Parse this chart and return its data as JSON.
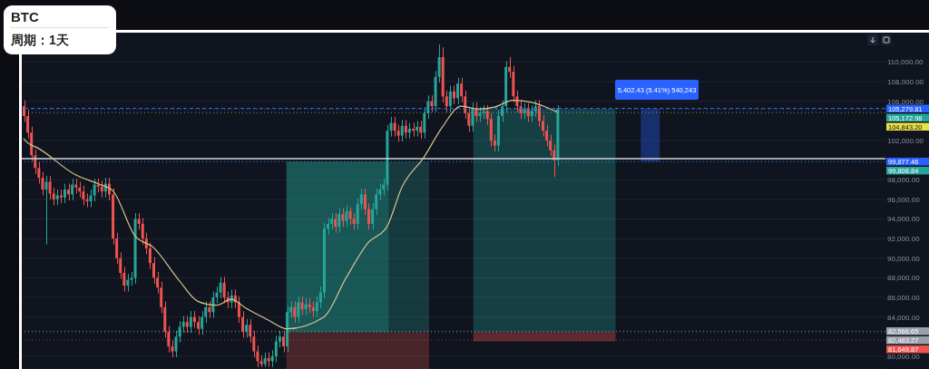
{
  "chart_data": {
    "type": "candlestick",
    "title": "BTC",
    "subtitle": "周期：1天",
    "categories": [
      null,
      null,
      null,
      null,
      null,
      null,
      null,
      null,
      null,
      null,
      null,
      null,
      null,
      null,
      null,
      null,
      null,
      null,
      null,
      null,
      null,
      null,
      null,
      null,
      null,
      null,
      null,
      null,
      null,
      null,
      null,
      null,
      null,
      null,
      null,
      null,
      null,
      null,
      null,
      null,
      null,
      null,
      null,
      null,
      null,
      null,
      null,
      null,
      null,
      null,
      null,
      null,
      null,
      null,
      null,
      null,
      null,
      null,
      null,
      null,
      null,
      null,
      null,
      null,
      null,
      null,
      null,
      null,
      null,
      null,
      null,
      null,
      null,
      null,
      null,
      null,
      null,
      null,
      null,
      null,
      null,
      null,
      null,
      null,
      null,
      null,
      null,
      null,
      null,
      null,
      null,
      null,
      null,
      null,
      null,
      null,
      null,
      null,
      null,
      null,
      null,
      null,
      null,
      null,
      null,
      null,
      null,
      null,
      null,
      null,
      null,
      null,
      null,
      null,
      null,
      null,
      null,
      null,
      null,
      null,
      null,
      null,
      null,
      null,
      null,
      null,
      null,
      null,
      null,
      null,
      null,
      null,
      null,
      null,
      null,
      null,
      null,
      null,
      null,
      null,
      null,
      null,
      null,
      null,
      null,
      null,
      null,
      null,
      null,
      null,
      null,
      null,
      null,
      null,
      null,
      null,
      null,
      null,
      null,
      null,
      null,
      null,
      null,
      null,
      null,
      null,
      null,
      null,
      null,
      null,
      null,
      null,
      null,
      null,
      null,
      null,
      null,
      null,
      null,
      null,
      null,
      null,
      null,
      null,
      null,
      null,
      null,
      null,
      null,
      null,
      null,
      null,
      null,
      null,
      null,
      null,
      null,
      null,
      null,
      null,
      null,
      null,
      null,
      null,
      null,
      null,
      null,
      null,
      null,
      null,
      null,
      null,
      null,
      null,
      null,
      null,
      null,
      null,
      null,
      null,
      null,
      null,
      null,
      null,
      null,
      null,
      null,
      null,
      null,
      null,
      null,
      null,
      null
    ],
    "ohlc": [
      [
        105500,
        106100,
        103900,
        104500
      ],
      [
        104500,
        105100,
        102200,
        102800
      ],
      [
        102800,
        103400,
        99900,
        100500
      ],
      [
        100500,
        101100,
        98600,
        99200
      ],
      [
        99200,
        99800,
        97600,
        98200
      ],
      [
        98200,
        98800,
        96400,
        97000
      ],
      [
        97000,
        98400,
        91400,
        97800
      ],
      [
        97800,
        98400,
        96000,
        96600
      ],
      [
        96600,
        97200,
        95400,
        96000
      ],
      [
        96000,
        97000,
        95400,
        96400
      ],
      [
        96400,
        97000,
        95600,
        96200
      ],
      [
        96200,
        97600,
        95600,
        97000
      ],
      [
        97000,
        97600,
        95900,
        96500
      ],
      [
        96500,
        98100,
        95900,
        97500
      ],
      [
        97500,
        98100,
        96600,
        97200
      ],
      [
        97200,
        97800,
        96200,
        96800
      ],
      [
        96800,
        97400,
        95400,
        96000
      ],
      [
        96000,
        96600,
        95200,
        95800
      ],
      [
        95800,
        97000,
        95200,
        96400
      ],
      [
        96400,
        98100,
        95800,
        97500
      ],
      [
        97500,
        98100,
        96700,
        97300
      ],
      [
        97300,
        97900,
        96200,
        96800
      ],
      [
        96800,
        98200,
        96200,
        97600
      ],
      [
        97600,
        98200,
        95900,
        96500
      ],
      [
        96500,
        97100,
        91400,
        92000
      ],
      [
        92000,
        92600,
        89400,
        90000
      ],
      [
        90000,
        90600,
        87900,
        88500
      ],
      [
        88500,
        89100,
        86600,
        87200
      ],
      [
        87200,
        88400,
        86600,
        87800
      ],
      [
        87800,
        88600,
        87200,
        88000
      ],
      [
        88000,
        94600,
        87400,
        94000
      ],
      [
        94000,
        94600,
        92900,
        93500
      ],
      [
        93500,
        94100,
        91400,
        92000
      ],
      [
        92000,
        92600,
        90400,
        91000
      ],
      [
        91000,
        91600,
        88900,
        89500
      ],
      [
        89500,
        90100,
        87400,
        88000
      ],
      [
        88000,
        88600,
        86400,
        87000
      ],
      [
        87000,
        87600,
        84400,
        85000
      ],
      [
        85000,
        85600,
        81900,
        82500
      ],
      [
        82500,
        83100,
        80400,
        81000
      ],
      [
        81000,
        81600,
        79900,
        80500
      ],
      [
        80500,
        82600,
        79900,
        82000
      ],
      [
        82000,
        83600,
        81400,
        83000
      ],
      [
        83000,
        84100,
        82400,
        83500
      ],
      [
        83500,
        84100,
        82400,
        83000
      ],
      [
        83000,
        84600,
        82400,
        84000
      ],
      [
        84000,
        84600,
        82900,
        83500
      ],
      [
        83500,
        84100,
        82200,
        82800
      ],
      [
        82800,
        84600,
        82200,
        84000
      ],
      [
        84000,
        85600,
        83400,
        85000
      ],
      [
        85000,
        85600,
        83900,
        84500
      ],
      [
        84500,
        86600,
        83900,
        86000
      ],
      [
        86000,
        87100,
        85400,
        86500
      ],
      [
        86500,
        88100,
        85900,
        87500
      ],
      [
        87500,
        88100,
        85400,
        86000
      ],
      [
        86000,
        86600,
        84900,
        85500
      ],
      [
        85500,
        86800,
        84900,
        86200
      ],
      [
        86200,
        86800,
        84900,
        85500
      ],
      [
        85500,
        86100,
        83400,
        84000
      ],
      [
        84000,
        84600,
        81900,
        82500
      ],
      [
        82500,
        83800,
        81900,
        83200
      ],
      [
        83200,
        83800,
        81400,
        82000
      ],
      [
        82000,
        82600,
        79900,
        80500
      ],
      [
        80500,
        81100,
        78900,
        79500
      ],
      [
        79500,
        80100,
        78900,
        79200
      ],
      [
        79200,
        80400,
        78900,
        79800
      ],
      [
        79800,
        80400,
        78900,
        79500
      ],
      [
        79500,
        80600,
        78900,
        80000
      ],
      [
        80000,
        82100,
        79400,
        81500
      ],
      [
        81500,
        82600,
        80900,
        82000
      ],
      [
        82000,
        82600,
        80400,
        81000
      ],
      [
        81000,
        85100,
        80400,
        84500
      ],
      [
        84500,
        85600,
        83900,
        85000
      ],
      [
        85000,
        85600,
        83400,
        84000
      ],
      [
        84000,
        86100,
        83400,
        85500
      ],
      [
        85500,
        86100,
        84200,
        84800
      ],
      [
        84800,
        85900,
        84200,
        85300
      ],
      [
        85300,
        85900,
        84400,
        85000
      ],
      [
        85000,
        85600,
        84000,
        84600
      ],
      [
        84600,
        86100,
        84000,
        85500
      ],
      [
        85500,
        87100,
        84900,
        86500
      ],
      [
        86500,
        93600,
        85900,
        93000
      ],
      [
        93000,
        94100,
        92400,
        93500
      ],
      [
        93500,
        94600,
        92900,
        94000
      ],
      [
        94000,
        94600,
        92600,
        93200
      ],
      [
        93200,
        95100,
        92600,
        94500
      ],
      [
        94500,
        95100,
        93200,
        93800
      ],
      [
        93800,
        95400,
        93200,
        94800
      ],
      [
        94800,
        95200,
        93400,
        94000
      ],
      [
        94000,
        94600,
        92900,
        93500
      ],
      [
        93500,
        96100,
        92900,
        95500
      ],
      [
        95500,
        97100,
        94900,
        96500
      ],
      [
        96500,
        97100,
        94400,
        95000
      ],
      [
        95000,
        95600,
        92900,
        93500
      ],
      [
        93500,
        95600,
        92900,
        95000
      ],
      [
        95000,
        97100,
        94400,
        96500
      ],
      [
        96500,
        97600,
        95900,
        97000
      ],
      [
        97000,
        98100,
        96400,
        97500
      ],
      [
        97500,
        103600,
        96900,
        103000
      ],
      [
        103000,
        104400,
        102400,
        103800
      ],
      [
        103800,
        104400,
        102400,
        103000
      ],
      [
        103000,
        103600,
        101900,
        102500
      ],
      [
        102500,
        104100,
        101900,
        103500
      ],
      [
        103500,
        104100,
        102200,
        102800
      ],
      [
        102800,
        103800,
        102200,
        103200
      ],
      [
        103200,
        103800,
        102400,
        103000
      ],
      [
        103000,
        104000,
        102400,
        103400
      ],
      [
        103400,
        104000,
        102200,
        102800
      ],
      [
        102800,
        105400,
        102200,
        104800
      ],
      [
        104800,
        106600,
        104200,
        106000
      ],
      [
        106000,
        106600,
        104900,
        105500
      ],
      [
        105500,
        109100,
        104900,
        108500
      ],
      [
        108500,
        111800,
        107900,
        110500
      ],
      [
        110500,
        111500,
        105900,
        106500
      ],
      [
        106500,
        107100,
        104900,
        105500
      ],
      [
        105500,
        107600,
        104900,
        107000
      ],
      [
        107000,
        107600,
        105700,
        106300
      ],
      [
        106300,
        108400,
        105700,
        107800
      ],
      [
        107800,
        108400,
        105900,
        106500
      ],
      [
        106500,
        107100,
        104200,
        104800
      ],
      [
        104800,
        105400,
        102900,
        103500
      ],
      [
        103500,
        105900,
        102900,
        105300
      ],
      [
        105300,
        105900,
        103900,
        104500
      ],
      [
        104500,
        105400,
        103900,
        104800
      ],
      [
        104800,
        105600,
        104200,
        105000
      ],
      [
        105000,
        105600,
        103600,
        104200
      ],
      [
        104200,
        104800,
        101400,
        102000
      ],
      [
        102000,
        102600,
        100900,
        101500
      ],
      [
        101500,
        105100,
        100900,
        104500
      ],
      [
        104500,
        106100,
        103900,
        105500
      ],
      [
        105500,
        110100,
        104900,
        109500
      ],
      [
        109500,
        110500,
        108400,
        109000
      ],
      [
        109000,
        109600,
        105900,
        106500
      ],
      [
        106500,
        107100,
        104900,
        105500
      ],
      [
        105500,
        106100,
        104200,
        104800
      ],
      [
        104800,
        105800,
        104200,
        105200
      ],
      [
        105200,
        105800,
        103900,
        104500
      ],
      [
        104500,
        105600,
        103900,
        105000
      ],
      [
        105000,
        106100,
        104400,
        105500
      ],
      [
        105500,
        106100,
        103400,
        104000
      ],
      [
        104000,
        104600,
        102400,
        103000
      ],
      [
        103000,
        103600,
        101400,
        102000
      ],
      [
        102000,
        102600,
        100400,
        101000
      ],
      [
        101000,
        101600,
        98300,
        100000
      ],
      [
        100000,
        105600,
        99400,
        105280
      ],
      null,
      null,
      null,
      null,
      null,
      null,
      null,
      null,
      null,
      null,
      null,
      null,
      null,
      null,
      null,
      null,
      null,
      null,
      null,
      null,
      null,
      null,
      null,
      null,
      null,
      null,
      null,
      null,
      null,
      null,
      null,
      null,
      null,
      null,
      null,
      null,
      null,
      null,
      null,
      null,
      null,
      null,
      null,
      null,
      null,
      null,
      null,
      null,
      null,
      null,
      null,
      null,
      null,
      null,
      null,
      null,
      null,
      null,
      null,
      null,
      null,
      null,
      null,
      null,
      null,
      null,
      null,
      null,
      null,
      null,
      null,
      null,
      null,
      null,
      null,
      null,
      null,
      null,
      null,
      null,
      null,
      null,
      null,
      null,
      null,
      null,
      null,
      null
    ],
    "series": [
      {
        "type": "line",
        "color": "#d6c48c",
        "values": [
          102200,
          101800,
          null,
          null,
          101200,
          null,
          null,
          null,
          null,
          null,
          null,
          null,
          null,
          null,
          98500,
          null,
          null,
          null,
          null,
          null,
          97600,
          null,
          null,
          null,
          96900,
          null,
          null,
          null,
          null,
          null,
          92300,
          null,
          null,
          null,
          null,
          91100,
          null,
          null,
          null,
          null,
          null,
          null,
          87700,
          null,
          null,
          null,
          null,
          85600,
          null,
          null,
          null,
          null,
          85200,
          null,
          null,
          null,
          85800,
          null,
          null,
          null,
          84900,
          null,
          null,
          null,
          null,
          null,
          83700,
          null,
          null,
          null,
          null,
          82800,
          null,
          null,
          null,
          null,
          null,
          null,
          null,
          null,
          null,
          84000,
          null,
          null,
          null,
          null,
          null,
          88000,
          null,
          null,
          null,
          null,
          null,
          91600,
          null,
          null,
          null,
          null,
          93200,
          null,
          null,
          null,
          97200,
          null,
          null,
          null,
          null,
          null,
          100300,
          null,
          null,
          null,
          null,
          103400,
          null,
          null,
          null,
          null,
          105500,
          null,
          null,
          null,
          null,
          105200,
          null,
          null,
          null,
          105400,
          null,
          null,
          null,
          null,
          106100,
          null,
          null,
          null,
          null,
          105900,
          null,
          null,
          null,
          105400,
          null,
          null,
          104900,
          null,
          null,
          null,
          null,
          null,
          null,
          null,
          null,
          null,
          null,
          null,
          null,
          null,
          null,
          null,
          null,
          null,
          null,
          null,
          null,
          null,
          null,
          null,
          null,
          null,
          null,
          null,
          null,
          null,
          null,
          null,
          null,
          null,
          null,
          null,
          null,
          null,
          null,
          null,
          null,
          null,
          null,
          null,
          null,
          null,
          null,
          null,
          null,
          null,
          null,
          null,
          null,
          null,
          null,
          null,
          null,
          null,
          null,
          null,
          null,
          null,
          null,
          null,
          null,
          null,
          null,
          null,
          null,
          null,
          null,
          null,
          null,
          null,
          null,
          null,
          null,
          null,
          null,
          null,
          null,
          null,
          null,
          null,
          null,
          null,
          null,
          null,
          null
        ]
      }
    ],
    "ylim": [
      78700,
      113000
    ],
    "yticks": [
      {
        "value": 80000,
        "label": "80,000.00"
      },
      {
        "value": 84000,
        "label": "84,000.00"
      },
      {
        "value": 86000,
        "label": "86,000.00"
      },
      {
        "value": 88000,
        "label": "88,000.00"
      },
      {
        "value": 90000,
        "label": "90,000.00"
      },
      {
        "value": 92000,
        "label": "92,000.00"
      },
      {
        "value": 94000,
        "label": "94,000.00"
      },
      {
        "value": 96000,
        "label": "96,000.00"
      },
      {
        "value": 98000,
        "label": "98,000.00"
      },
      {
        "value": 102000,
        "label": "102,000.00"
      },
      {
        "value": 106000,
        "label": "106,000.00"
      },
      {
        "value": 108000,
        "label": "108,000.00"
      },
      {
        "value": 110000,
        "label": "110,000.00"
      }
    ],
    "tick_labels": "y",
    "grid": "y",
    "ref_lines": [
      {
        "axis": "y",
        "value": 105279.81,
        "label": "105,279.81",
        "color": "#2962ff",
        "line_style": "dashed"
      },
      {
        "axis": "y",
        "value": 105172.98,
        "label": "105,172.98",
        "color": "#26a69a",
        "line_style": "dotted"
      },
      {
        "axis": "y",
        "value": 104843.2,
        "label": "104,843.20",
        "color": "#e6e14a",
        "line_style": "dotted"
      },
      {
        "axis": "y",
        "value": 100140,
        "color": "#d0d4dc",
        "line_style": "solid"
      },
      {
        "axis": "y",
        "value": 99877.46,
        "label": "99,877.46",
        "color": "#2962ff",
        "line_style": "dotted"
      },
      {
        "axis": "y",
        "value": 99808.84,
        "label": "99,808.84",
        "color": "#26a69a",
        "line_style": "dotted"
      },
      {
        "axis": "y",
        "value": 82566.65,
        "label": "82,566.65",
        "color": "#9aa0aa",
        "line_style": "dotted"
      },
      {
        "axis": "y",
        "value": 82483.27,
        "label": "82,483.27",
        "color": "#9aa0aa",
        "line_style": "dotted"
      },
      {
        "axis": "y",
        "value": 81649.87,
        "label": "81,649.87",
        "color": "#ef5350",
        "line_style": "dotted"
      }
    ],
    "annotations": [
      "5,402.43 (5.41%) 540,243"
    ]
  }
}
